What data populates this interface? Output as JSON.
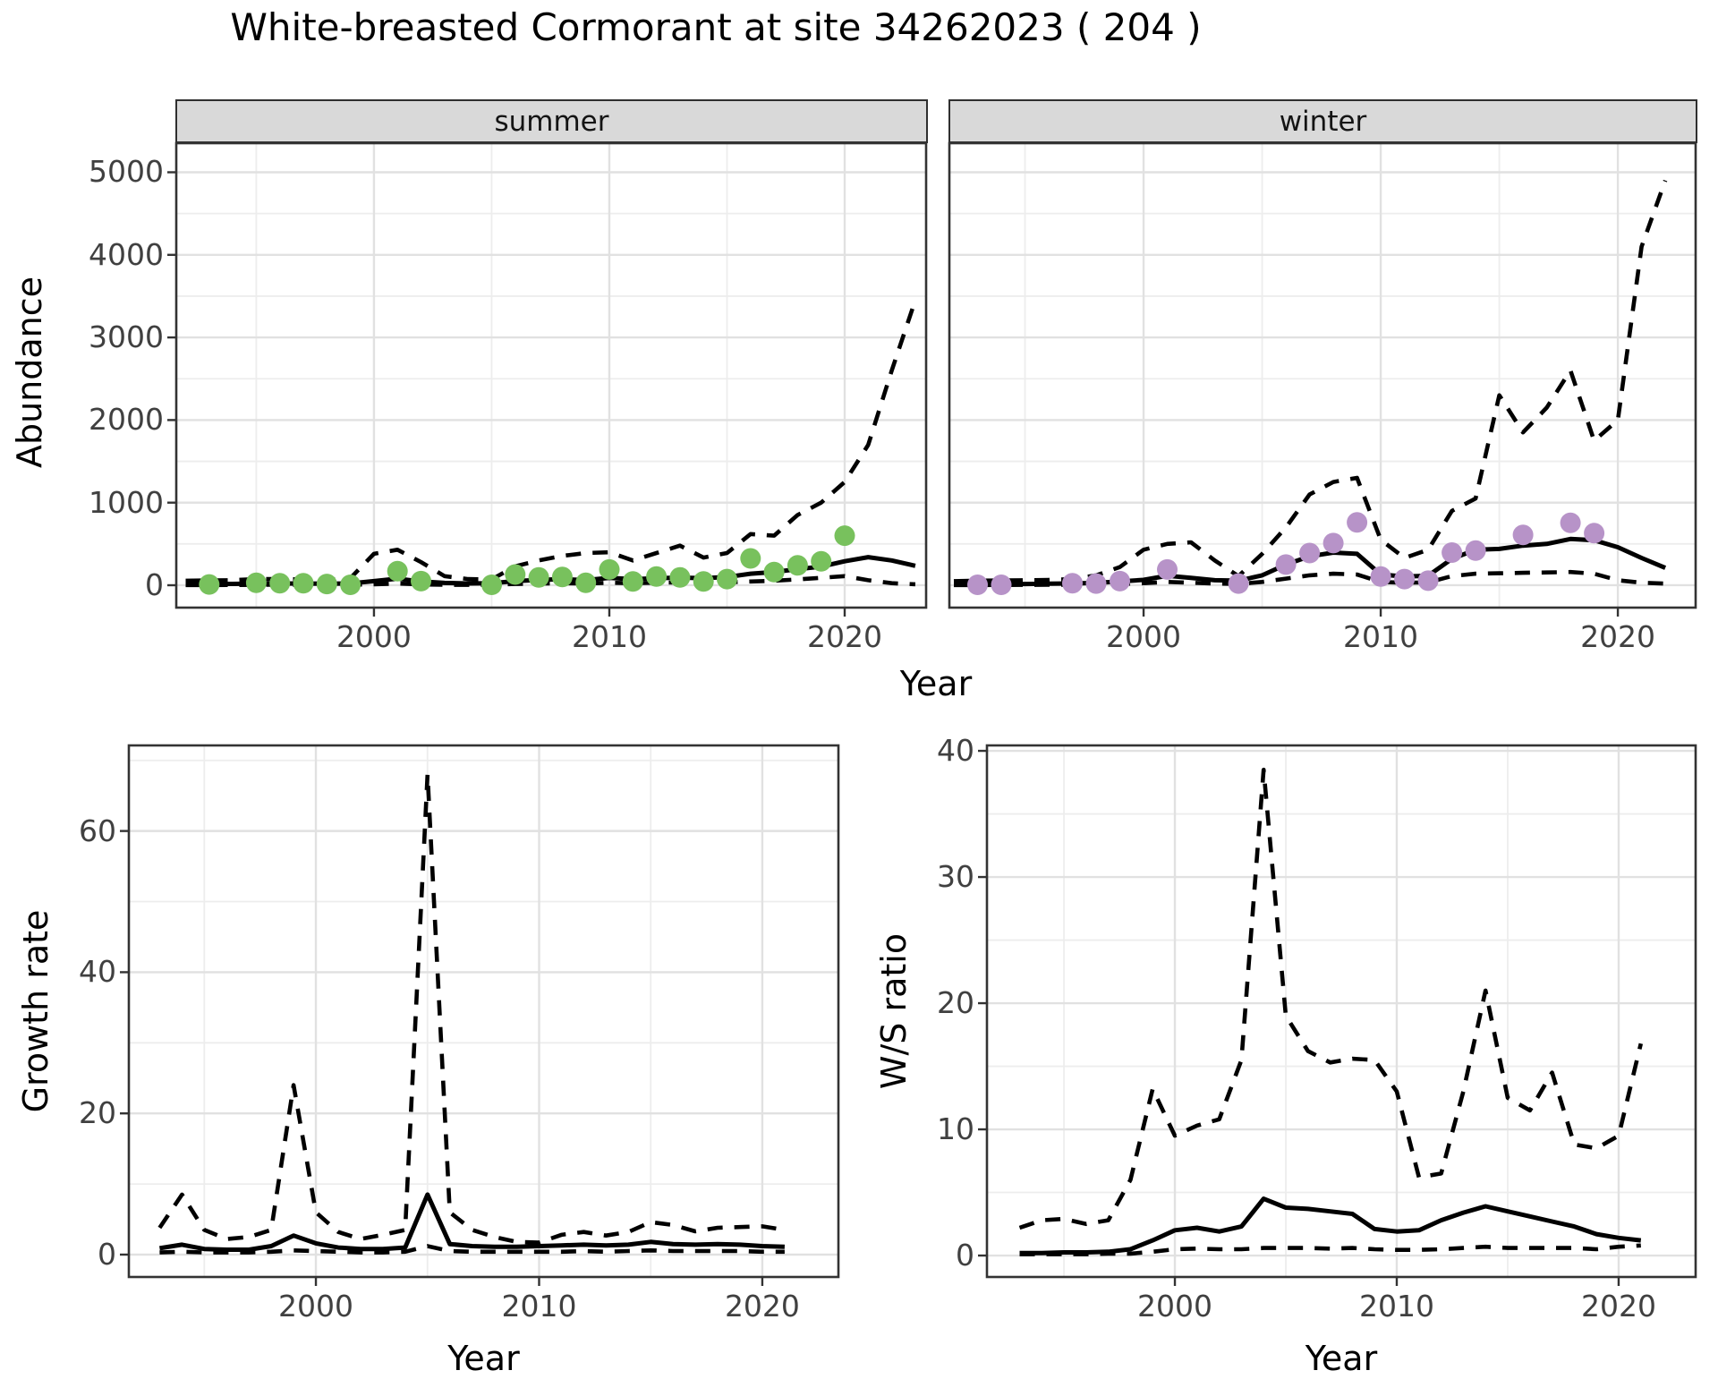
{
  "title": "White-breasted Cormorant at site 34262023 ( 204 )",
  "facets": [
    {
      "label": "summer"
    },
    {
      "label": "winter"
    }
  ],
  "axes": {
    "abundance_title": "Abundance",
    "growth_title": "Growth rate",
    "ws_title": "W/S ratio",
    "top_x_title": "Year",
    "bottom_left_x_title": "Year",
    "bottom_right_x_title": "Year"
  },
  "colors": {
    "summer_point": "#78C15D",
    "winter_point": "#B793C8",
    "line": "#000000",
    "panel_border": "#333333",
    "grid_major": "#E1E1E1",
    "grid_minor": "#EDEDED",
    "strip_bg": "#D9D9D9",
    "tick_text": "#404040"
  },
  "chart_data": [
    {
      "id": "abundance-summer",
      "type": "line",
      "title": "summer",
      "xlabel": "Year",
      "ylabel": "Abundance",
      "x_range": [
        1991.6,
        2023.46
      ],
      "y_range": [
        -271,
        5352
      ],
      "x_ticks": [
        2000,
        2010,
        2020
      ],
      "x_minor": [
        1995,
        2005,
        2015
      ],
      "y_ticks": [
        0,
        1000,
        2000,
        3000,
        4000,
        5000
      ],
      "y_minor": [
        500,
        1500,
        2500,
        3500,
        4500
      ],
      "point_color": "#78C15D",
      "series": [
        {
          "name": "observed",
          "style": "points",
          "x": [
            1993,
            1995,
            1996,
            1997,
            1998,
            1999,
            2001,
            2002,
            2005,
            2006,
            2007,
            2008,
            2009,
            2010,
            2011,
            2012,
            2013,
            2014,
            2015,
            2016,
            2017,
            2018,
            2019,
            2020
          ],
          "y": [
            10,
            30,
            25,
            25,
            15,
            5,
            170,
            50,
            5,
            130,
            95,
            100,
            30,
            190,
            45,
            105,
            95,
            45,
            75,
            325,
            160,
            240,
            290,
            600
          ]
        },
        {
          "name": "mean",
          "style": "solid",
          "x": [
            1992,
            1993,
            1994,
            1995,
            1996,
            1997,
            1998,
            1999,
            2000,
            2001,
            2002,
            2003,
            2004,
            2005,
            2006,
            2007,
            2008,
            2009,
            2010,
            2011,
            2012,
            2013,
            2014,
            2015,
            2016,
            2017,
            2018,
            2019,
            2020,
            2021,
            2022,
            2023
          ],
          "y": [
            15,
            14,
            16,
            20,
            22,
            20,
            18,
            22,
            50,
            80,
            45,
            28,
            22,
            25,
            50,
            65,
            72,
            62,
            90,
            72,
            85,
            92,
            85,
            100,
            140,
            160,
            195,
            225,
            290,
            340,
            300,
            235
          ]
        },
        {
          "name": "upper_ci",
          "style": "dashed",
          "x": [
            1992,
            1993,
            1994,
            1995,
            1996,
            1997,
            1998,
            1999,
            2000,
            2001,
            2002,
            2003,
            2004,
            2005,
            2006,
            2007,
            2008,
            2009,
            2010,
            2011,
            2012,
            2013,
            2014,
            2015,
            2016,
            2017,
            2018,
            2019,
            2020,
            2021,
            2022,
            2023
          ],
          "y": [
            55,
            58,
            62,
            75,
            75,
            70,
            65,
            85,
            380,
            430,
            280,
            110,
            75,
            70,
            230,
            300,
            355,
            390,
            400,
            300,
            390,
            480,
            335,
            390,
            620,
            600,
            850,
            1000,
            1250,
            1700,
            2600,
            3450
          ]
        },
        {
          "name": "lower_ci",
          "style": "dashed",
          "x": [
            1992,
            1993,
            1994,
            1995,
            1996,
            1997,
            1998,
            1999,
            2000,
            2001,
            2002,
            2003,
            2004,
            2005,
            2006,
            2007,
            2008,
            2009,
            2010,
            2011,
            2012,
            2013,
            2014,
            2015,
            2016,
            2017,
            2018,
            2019,
            2020,
            2021,
            2022,
            2023
          ],
          "y": [
            2,
            2,
            3,
            5,
            5,
            4,
            3,
            4,
            12,
            20,
            10,
            5,
            4,
            5,
            15,
            20,
            25,
            20,
            30,
            25,
            30,
            35,
            30,
            35,
            45,
            55,
            70,
            90,
            110,
            60,
            25,
            12
          ]
        }
      ]
    },
    {
      "id": "abundance-winter",
      "type": "line",
      "title": "winter",
      "xlabel": "Year",
      "ylabel": "Abundance",
      "x_range": [
        1991.81,
        2023.28
      ],
      "y_range": [
        -271,
        5352
      ],
      "x_ticks": [
        2000,
        2010,
        2020
      ],
      "x_minor": [
        1995,
        2005,
        2015
      ],
      "y_ticks": [
        0,
        1000,
        2000,
        3000,
        4000,
        5000
      ],
      "y_minor": [
        500,
        1500,
        2500,
        3500,
        4500
      ],
      "point_color": "#B793C8",
      "series": [
        {
          "name": "observed",
          "style": "points",
          "x": [
            1993,
            1994,
            1997,
            1998,
            1999,
            2001,
            2004,
            2006,
            2007,
            2008,
            2009,
            2010,
            2011,
            2012,
            2013,
            2014,
            2016,
            2018,
            2019
          ],
          "y": [
            5,
            5,
            25,
            20,
            50,
            190,
            20,
            250,
            390,
            510,
            760,
            105,
            75,
            55,
            395,
            420,
            610,
            755,
            630
          ]
        },
        {
          "name": "mean",
          "style": "solid",
          "x": [
            1992,
            1993,
            1994,
            1995,
            1996,
            1997,
            1998,
            1999,
            2000,
            2001,
            2002,
            2003,
            2004,
            2005,
            2006,
            2007,
            2008,
            2009,
            2010,
            2011,
            2012,
            2013,
            2014,
            2015,
            2016,
            2017,
            2018,
            2019,
            2020,
            2021,
            2022
          ],
          "y": [
            10,
            10,
            12,
            15,
            18,
            22,
            28,
            45,
            65,
            115,
            90,
            60,
            55,
            120,
            250,
            350,
            395,
            380,
            130,
            105,
            115,
            320,
            430,
            440,
            480,
            500,
            560,
            545,
            460,
            330,
            210
          ]
        },
        {
          "name": "upper_ci",
          "style": "dashed",
          "x": [
            1992,
            1993,
            1994,
            1995,
            1996,
            1997,
            1998,
            1999,
            2000,
            2001,
            2002,
            2003,
            2004,
            2005,
            2006,
            2007,
            2008,
            2009,
            2010,
            2011,
            2012,
            2013,
            2014,
            2015,
            2016,
            2017,
            2018,
            2019,
            2020,
            2021,
            2022
          ],
          "y": [
            50,
            55,
            58,
            60,
            65,
            75,
            120,
            220,
            430,
            500,
            520,
            300,
            110,
            380,
            700,
            1100,
            1250,
            1300,
            550,
            330,
            430,
            900,
            1050,
            2300,
            1850,
            2150,
            2600,
            1750,
            2000,
            4100,
            4900
          ]
        },
        {
          "name": "lower_ci",
          "style": "dashed",
          "x": [
            1992,
            1993,
            1994,
            1995,
            1996,
            1997,
            1998,
            1999,
            2000,
            2001,
            2002,
            2003,
            2004,
            2005,
            2006,
            2007,
            2008,
            2009,
            2010,
            2011,
            2012,
            2013,
            2014,
            2015,
            2016,
            2017,
            2018,
            2019,
            2020,
            2021,
            2022
          ],
          "y": [
            2,
            2,
            3,
            4,
            5,
            6,
            8,
            15,
            25,
            40,
            30,
            20,
            15,
            40,
            80,
            120,
            140,
            130,
            40,
            30,
            35,
            110,
            140,
            145,
            150,
            155,
            160,
            140,
            60,
            30,
            20
          ]
        }
      ]
    },
    {
      "id": "growth-rate",
      "type": "line",
      "title": "Growth rate",
      "xlabel": "Year",
      "ylabel": "Growth rate",
      "x_range": [
        1991.62,
        2023.41
      ],
      "y_range": [
        -3.17,
        72.12
      ],
      "x_ticks": [
        2000,
        2010,
        2020
      ],
      "x_minor": [
        1995,
        2005,
        2015
      ],
      "y_ticks": [
        0,
        20,
        40,
        60
      ],
      "y_minor": [
        10,
        30,
        50,
        70
      ],
      "series": [
        {
          "name": "mean",
          "style": "solid",
          "x": [
            1993,
            1994,
            1995,
            1996,
            1997,
            1998,
            1999,
            2000,
            2001,
            2002,
            2003,
            2004,
            2005,
            2006,
            2007,
            2008,
            2009,
            2010,
            2011,
            2012,
            2013,
            2014,
            2015,
            2016,
            2017,
            2018,
            2019,
            2020,
            2021
          ],
          "y": [
            0.9,
            1.4,
            0.8,
            0.7,
            0.7,
            1.2,
            2.7,
            1.6,
            1.0,
            0.8,
            0.8,
            1.0,
            8.5,
            1.5,
            1.2,
            1.1,
            1.1,
            1.2,
            1.3,
            1.4,
            1.3,
            1.4,
            1.8,
            1.5,
            1.4,
            1.5,
            1.4,
            1.2,
            1.1
          ]
        },
        {
          "name": "upper_ci",
          "style": "dashed",
          "x": [
            1993,
            1994,
            1995,
            1996,
            1997,
            1998,
            1999,
            2000,
            2001,
            2002,
            2003,
            2004,
            2005,
            2006,
            2007,
            2008,
            2009,
            2010,
            2011,
            2012,
            2013,
            2014,
            2015,
            2016,
            2017,
            2018,
            2019,
            2020,
            2021
          ],
          "y": [
            3.8,
            8.5,
            3.5,
            2.2,
            2.5,
            3.5,
            24,
            6,
            3.2,
            2.2,
            2.8,
            3.5,
            68,
            6,
            3.5,
            2.5,
            1.8,
            1.7,
            2.8,
            3.2,
            2.7,
            3.2,
            4.6,
            4.2,
            3.3,
            3.8,
            3.9,
            4.0,
            3.5
          ]
        },
        {
          "name": "lower_ci",
          "style": "dashed",
          "x": [
            1993,
            1994,
            1995,
            1996,
            1997,
            1998,
            1999,
            2000,
            2001,
            2002,
            2003,
            2004,
            2005,
            2006,
            2007,
            2008,
            2009,
            2010,
            2011,
            2012,
            2013,
            2014,
            2015,
            2016,
            2017,
            2018,
            2019,
            2020,
            2021
          ],
          "y": [
            0.3,
            0.4,
            0.3,
            0.3,
            0.3,
            0.4,
            0.6,
            0.5,
            0.4,
            0.3,
            0.3,
            0.4,
            1.2,
            0.5,
            0.4,
            0.4,
            0.4,
            0.4,
            0.4,
            0.5,
            0.4,
            0.5,
            0.6,
            0.5,
            0.5,
            0.5,
            0.5,
            0.4,
            0.4
          ]
        }
      ]
    },
    {
      "id": "ws-ratio",
      "type": "line",
      "title": "W/S ratio",
      "xlabel": "Year",
      "ylabel": "W/S ratio",
      "x_range": [
        1991.53,
        2023.47
      ],
      "y_range": [
        -1.7,
        40.43
      ],
      "x_ticks": [
        2000,
        2010,
        2020
      ],
      "x_minor": [
        1995,
        2005,
        2015
      ],
      "y_ticks": [
        0,
        10,
        20,
        30,
        40
      ],
      "y_minor": [
        5,
        15,
        25,
        35
      ],
      "series": [
        {
          "name": "mean",
          "style": "solid",
          "x": [
            1993,
            1994,
            1995,
            1996,
            1997,
            1998,
            1999,
            2000,
            2001,
            2002,
            2003,
            2004,
            2005,
            2006,
            2007,
            2008,
            2009,
            2010,
            2011,
            2012,
            2013,
            2014,
            2015,
            2016,
            2017,
            2018,
            2019,
            2020,
            2021
          ],
          "y": [
            0.2,
            0.2,
            0.25,
            0.25,
            0.3,
            0.5,
            1.2,
            2.0,
            2.2,
            1.9,
            2.3,
            4.5,
            3.8,
            3.7,
            3.5,
            3.3,
            2.1,
            1.9,
            2.0,
            2.8,
            3.4,
            3.9,
            3.5,
            3.1,
            2.7,
            2.3,
            1.7,
            1.4,
            1.2
          ]
        },
        {
          "name": "upper_ci",
          "style": "dashed",
          "x": [
            1993,
            1994,
            1995,
            1996,
            1997,
            1998,
            1999,
            2000,
            2001,
            2002,
            2003,
            2004,
            2005,
            2006,
            2007,
            2008,
            2009,
            2010,
            2011,
            2012,
            2013,
            2014,
            2015,
            2016,
            2017,
            2018,
            2019,
            2020,
            2021
          ],
          "y": [
            2.2,
            2.8,
            2.9,
            2.5,
            2.8,
            6.0,
            13.2,
            9.5,
            10.3,
            10.8,
            15.5,
            38.5,
            19.0,
            16.2,
            15.3,
            15.6,
            15.5,
            13.0,
            6.2,
            6.5,
            13.0,
            21.0,
            12.5,
            11.5,
            14.5,
            8.8,
            8.5,
            9.5,
            16.8
          ]
        },
        {
          "name": "lower_ci",
          "style": "dashed",
          "x": [
            1993,
            1994,
            1995,
            1996,
            1997,
            1998,
            1999,
            2000,
            2001,
            2002,
            2003,
            2004,
            2005,
            2006,
            2007,
            2008,
            2009,
            2010,
            2011,
            2012,
            2013,
            2014,
            2015,
            2016,
            2017,
            2018,
            2019,
            2020,
            2021
          ],
          "y": [
            0.1,
            0.1,
            0.1,
            0.1,
            0.15,
            0.15,
            0.3,
            0.5,
            0.55,
            0.5,
            0.5,
            0.6,
            0.6,
            0.6,
            0.55,
            0.6,
            0.5,
            0.45,
            0.45,
            0.5,
            0.6,
            0.7,
            0.6,
            0.6,
            0.6,
            0.6,
            0.5,
            0.7,
            0.8
          ]
        }
      ]
    }
  ]
}
